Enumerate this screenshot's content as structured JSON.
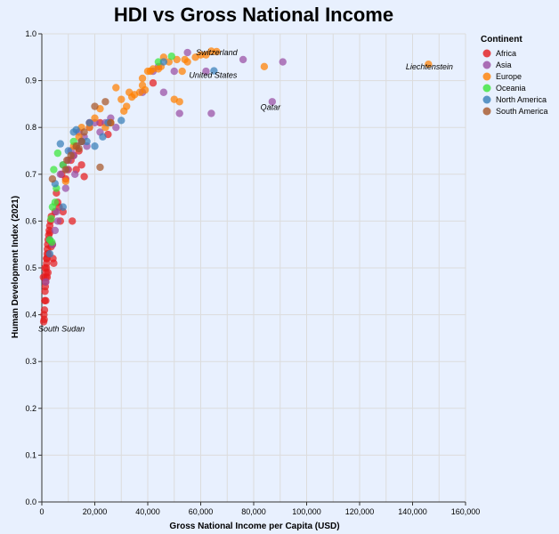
{
  "chart_data": {
    "type": "scatter",
    "title": "HDI vs Gross National Income",
    "xlabel": "Gross National Income per Capita (USD)",
    "ylabel": "Human Development Index (2021)",
    "xlim": [
      0,
      160000
    ],
    "ylim": [
      0,
      1
    ],
    "x_ticks": [
      "0",
      "20,000",
      "40,000",
      "60,000",
      "80,000",
      "100,000",
      "120,000",
      "140,000",
      "160,000"
    ],
    "x_tick_values": [
      0,
      20000,
      40000,
      60000,
      80000,
      100000,
      120000,
      140000,
      160000
    ],
    "y_ticks": [
      "0.0",
      "0.1",
      "0.2",
      "0.3",
      "0.4",
      "0.5",
      "0.6",
      "0.7",
      "0.8",
      "0.9",
      "1.0"
    ],
    "y_tick_values": [
      0,
      0.1,
      0.2,
      0.3,
      0.4,
      0.5,
      0.6,
      0.7,
      0.8,
      0.9,
      1.0
    ],
    "grid": true,
    "legend": {
      "title": "Continent",
      "placement": "top-right"
    },
    "series": [
      {
        "name": "Africa",
        "color": "#e41a1c",
        "points": [
          [
            700,
            0.385
          ],
          [
            800,
            0.4
          ],
          [
            900,
            0.39
          ],
          [
            1000,
            0.41
          ],
          [
            1100,
            0.43
          ],
          [
            1200,
            0.45
          ],
          [
            1300,
            0.46
          ],
          [
            1400,
            0.47
          ],
          [
            1500,
            0.48
          ],
          [
            1600,
            0.49
          ],
          [
            1700,
            0.5
          ],
          [
            1800,
            0.51
          ],
          [
            1900,
            0.52
          ],
          [
            2000,
            0.53
          ],
          [
            2100,
            0.54
          ],
          [
            2200,
            0.55
          ],
          [
            2400,
            0.56
          ],
          [
            2600,
            0.57
          ],
          [
            2800,
            0.58
          ],
          [
            3000,
            0.59
          ],
          [
            3300,
            0.6
          ],
          [
            3600,
            0.61
          ],
          [
            4000,
            0.55
          ],
          [
            4200,
            0.52
          ],
          [
            4500,
            0.51
          ],
          [
            5000,
            0.62
          ],
          [
            5500,
            0.66
          ],
          [
            6000,
            0.64
          ],
          [
            6500,
            0.63
          ],
          [
            7000,
            0.6
          ],
          [
            7500,
            0.7
          ],
          [
            8000,
            0.62
          ],
          [
            9000,
            0.69
          ],
          [
            10000,
            0.71
          ],
          [
            11000,
            0.73
          ],
          [
            11500,
            0.6
          ],
          [
            12000,
            0.74
          ],
          [
            13000,
            0.71
          ],
          [
            14000,
            0.75
          ],
          [
            15000,
            0.72
          ],
          [
            16000,
            0.695
          ],
          [
            18000,
            0.81
          ],
          [
            22000,
            0.81
          ],
          [
            25000,
            0.785
          ],
          [
            42000,
            0.895
          ],
          [
            1500,
            0.43
          ],
          [
            2000,
            0.48
          ],
          [
            2500,
            0.53
          ],
          [
            3000,
            0.575
          ],
          [
            3500,
            0.545
          ],
          [
            1200,
            0.5
          ],
          [
            1800,
            0.52
          ],
          [
            2300,
            0.49
          ],
          [
            600,
            0.48
          ]
        ]
      },
      {
        "name": "Asia",
        "color": "#984ea3",
        "points": [
          [
            1500,
            0.47
          ],
          [
            3000,
            0.56
          ],
          [
            4000,
            0.55
          ],
          [
            5000,
            0.58
          ],
          [
            6000,
            0.6
          ],
          [
            7000,
            0.7
          ],
          [
            8000,
            0.72
          ],
          [
            9000,
            0.67
          ],
          [
            10000,
            0.73
          ],
          [
            11000,
            0.75
          ],
          [
            12000,
            0.74
          ],
          [
            13000,
            0.76
          ],
          [
            14000,
            0.79
          ],
          [
            15000,
            0.77
          ],
          [
            16000,
            0.78
          ],
          [
            18000,
            0.8
          ],
          [
            20000,
            0.81
          ],
          [
            22000,
            0.79
          ],
          [
            24000,
            0.81
          ],
          [
            26000,
            0.82
          ],
          [
            28000,
            0.8
          ],
          [
            38000,
            0.875
          ],
          [
            42000,
            0.92
          ],
          [
            44000,
            0.93
          ],
          [
            46000,
            0.875
          ],
          [
            50000,
            0.92
          ],
          [
            52000,
            0.83
          ],
          [
            55000,
            0.96
          ],
          [
            62000,
            0.92
          ],
          [
            64000,
            0.83
          ],
          [
            76000,
            0.945
          ],
          [
            87000,
            0.855
          ],
          [
            91000,
            0.94
          ],
          [
            5500,
            0.62
          ],
          [
            9500,
            0.71
          ],
          [
            12500,
            0.7
          ],
          [
            17000,
            0.76
          ]
        ]
      },
      {
        "name": "Europe",
        "color": "#ff7f00",
        "points": [
          [
            9000,
            0.685
          ],
          [
            12000,
            0.76
          ],
          [
            14000,
            0.78
          ],
          [
            15000,
            0.8
          ],
          [
            18000,
            0.8
          ],
          [
            20000,
            0.82
          ],
          [
            22000,
            0.84
          ],
          [
            24000,
            0.8
          ],
          [
            26000,
            0.81
          ],
          [
            28000,
            0.885
          ],
          [
            30000,
            0.86
          ],
          [
            31000,
            0.835
          ],
          [
            32000,
            0.845
          ],
          [
            33000,
            0.875
          ],
          [
            34000,
            0.865
          ],
          [
            35000,
            0.87
          ],
          [
            37000,
            0.875
          ],
          [
            38000,
            0.905
          ],
          [
            39000,
            0.88
          ],
          [
            40000,
            0.92
          ],
          [
            41000,
            0.92
          ],
          [
            42000,
            0.925
          ],
          [
            44000,
            0.925
          ],
          [
            45000,
            0.93
          ],
          [
            46000,
            0.95
          ],
          [
            48000,
            0.94
          ],
          [
            50000,
            0.86
          ],
          [
            51000,
            0.945
          ],
          [
            52000,
            0.855
          ],
          [
            53000,
            0.92
          ],
          [
            54000,
            0.945
          ],
          [
            55000,
            0.94
          ],
          [
            58000,
            0.95
          ],
          [
            60000,
            0.955
          ],
          [
            62000,
            0.955
          ],
          [
            64000,
            0.963
          ],
          [
            66000,
            0.962
          ],
          [
            84000,
            0.93
          ],
          [
            146000,
            0.935
          ],
          [
            38000,
            0.89
          ]
        ]
      },
      {
        "name": "Oceania",
        "color": "#39e639",
        "points": [
          [
            3000,
            0.56
          ],
          [
            3500,
            0.605
          ],
          [
            4000,
            0.63
          ],
          [
            4500,
            0.71
          ],
          [
            5000,
            0.64
          ],
          [
            5500,
            0.67
          ],
          [
            6000,
            0.745
          ],
          [
            8000,
            0.72
          ],
          [
            12000,
            0.77
          ],
          [
            44000,
            0.94
          ],
          [
            49000,
            0.952
          ],
          [
            3800,
            0.555
          ]
        ]
      },
      {
        "name": "North America",
        "color": "#377eb8",
        "points": [
          [
            3000,
            0.53
          ],
          [
            5000,
            0.68
          ],
          [
            7000,
            0.765
          ],
          [
            8000,
            0.63
          ],
          [
            10000,
            0.75
          ],
          [
            12000,
            0.79
          ],
          [
            13000,
            0.795
          ],
          [
            15000,
            0.77
          ],
          [
            17000,
            0.77
          ],
          [
            18000,
            0.81
          ],
          [
            20000,
            0.76
          ],
          [
            23000,
            0.78
          ],
          [
            25000,
            0.81
          ],
          [
            30000,
            0.815
          ],
          [
            46000,
            0.94
          ],
          [
            65000,
            0.921
          ]
        ]
      },
      {
        "name": "South America",
        "color": "#a65628",
        "points": [
          [
            4000,
            0.69
          ],
          [
            9000,
            0.71
          ],
          [
            11000,
            0.74
          ],
          [
            13000,
            0.76
          ],
          [
            14000,
            0.755
          ],
          [
            15000,
            0.77
          ],
          [
            16000,
            0.79
          ],
          [
            20000,
            0.845
          ],
          [
            22000,
            0.715
          ],
          [
            24000,
            0.855
          ],
          [
            26000,
            0.81
          ],
          [
            9500,
            0.73
          ]
        ]
      }
    ],
    "annotations": [
      {
        "text": "Switzerland",
        "x": 66000,
        "y": 0.962
      },
      {
        "text": "United States",
        "x": 65000,
        "y": 0.921
      },
      {
        "text": "Liechtenstein",
        "x": 146000,
        "y": 0.935
      },
      {
        "text": "Qatar",
        "x": 87000,
        "y": 0.855
      },
      {
        "text": "South Sudan",
        "x": 700,
        "y": 0.385
      }
    ]
  }
}
